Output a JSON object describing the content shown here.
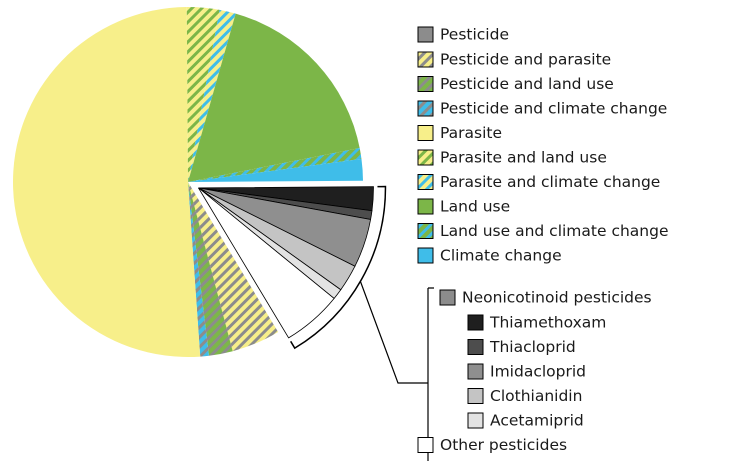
{
  "chart_data": {
    "type": "pie",
    "legend_groups": [
      {
        "name": "Pesticide",
        "color": "#8c8c8c"
      },
      {
        "name": "Neonicotinoid pesticides",
        "color": "#8c8c8c"
      }
    ],
    "slices": [
      {
        "name": "Pesticide and parasite",
        "color": "#f7ef8a",
        "hatch": "#8c8c8c",
        "value": 4.5
      },
      {
        "name": "Pesticide and land use",
        "color": "#7cb648",
        "hatch": "#8c8c8c",
        "value": 2.2
      },
      {
        "name": "Pesticide and climate change",
        "color": "#3fbde9",
        "hatch": "#8c8c8c",
        "value": 0.8
      },
      {
        "name": "Parasite",
        "color": "#f7ef8a",
        "value": 51
      },
      {
        "name": "Parasite and land use",
        "color": "#f7ef8a",
        "hatch": "#7cb648",
        "value": 3
      },
      {
        "name": "Parasite and climate change",
        "color": "#f7ef8a",
        "hatch": "#3fbde9",
        "value": 1.5
      },
      {
        "name": "Land use",
        "color": "#7cb648",
        "value": 17.5
      },
      {
        "name": "Land use and climate change",
        "color": "#7cb648",
        "hatch": "#3fbde9",
        "value": 1
      },
      {
        "name": "Climate change",
        "color": "#3fbde9",
        "value": 2
      },
      {
        "name": "Thiamethoxam",
        "color": "#1f1f1f",
        "value": 2.2,
        "exploded": true
      },
      {
        "name": "Thiacloprid",
        "color": "#4d4d4d",
        "value": 0.8,
        "exploded": true
      },
      {
        "name": "Imidacloprid",
        "color": "#8f8f8f",
        "value": 4.5,
        "exploded": true
      },
      {
        "name": "Clothianidin",
        "color": "#c4c4c4",
        "value": 2.5,
        "exploded": true
      },
      {
        "name": "Acetamiprid",
        "color": "#e3e3e3",
        "value": 1,
        "exploded": true
      },
      {
        "name": "Other pesticides",
        "color": "#ffffff",
        "value": 5.5,
        "exploded": true
      }
    ]
  }
}
